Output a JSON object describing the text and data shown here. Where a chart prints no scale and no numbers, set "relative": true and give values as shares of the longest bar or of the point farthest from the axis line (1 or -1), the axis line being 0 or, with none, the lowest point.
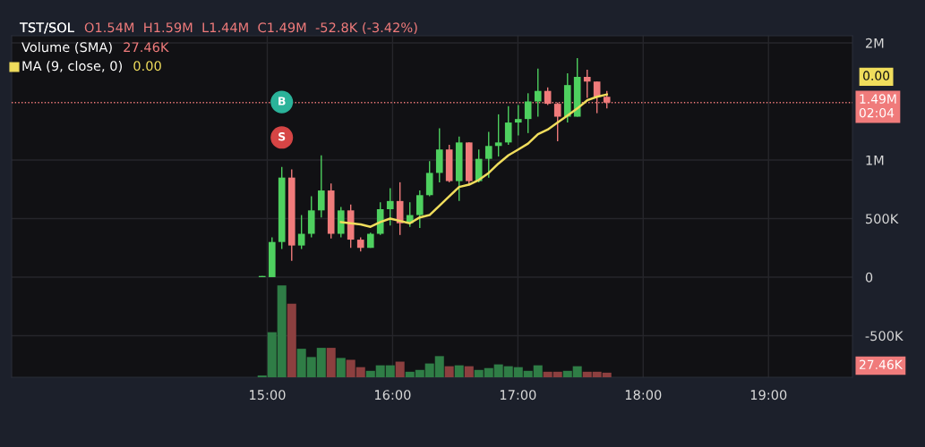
{
  "chart_data": [
    {
      "type": "candlestick",
      "title": "TST/SOL",
      "subtitle": "O1.54M  H1.59M  L1.44M  C1.49M  -52.8K (-3.42%)",
      "x": [
        14.959,
        15.038,
        15.116,
        15.195,
        15.273,
        15.352,
        15.431,
        15.509,
        15.588,
        15.666,
        15.745,
        15.824,
        15.902,
        15.981,
        16.059,
        16.138,
        16.217,
        16.295,
        16.374,
        16.452,
        16.531,
        16.61,
        16.688,
        16.767,
        16.845,
        16.924,
        17.003,
        17.081,
        17.16,
        17.238,
        17.317,
        17.396,
        17.474,
        17.553,
        17.631,
        17.71
      ],
      "series": [
        {
          "type": "candlestick",
          "ohlc": [
            [
              0,
              10000,
              0,
              10000
            ],
            [
              0,
              340000,
              0,
              300000
            ],
            [
              300000,
              940000,
              240000,
              850000
            ],
            [
              850000,
              920000,
              140000,
              270000
            ],
            [
              270000,
              530000,
              240000,
              370000
            ],
            [
              370000,
              690000,
              340000,
              570000
            ],
            [
              570000,
              1040000,
              510000,
              740000
            ],
            [
              740000,
              800000,
              330000,
              370000
            ],
            [
              370000,
              600000,
              340000,
              570000
            ],
            [
              570000,
              620000,
              250000,
              320000
            ],
            [
              320000,
              340000,
              220000,
              250000
            ],
            [
              250000,
              380000,
              250000,
              370000
            ],
            [
              370000,
              640000,
              360000,
              580000
            ],
            [
              580000,
              760000,
              440000,
              650000
            ],
            [
              650000,
              810000,
              360000,
              460000
            ],
            [
              460000,
              640000,
              430000,
              530000
            ],
            [
              530000,
              740000,
              420000,
              700000
            ],
            [
              700000,
              990000,
              690000,
              890000
            ],
            [
              890000,
              1270000,
              810000,
              1090000
            ],
            [
              1090000,
              1130000,
              810000,
              820000
            ],
            [
              820000,
              1200000,
              650000,
              1150000
            ],
            [
              1150000,
              1150000,
              790000,
              820000
            ],
            [
              820000,
              1090000,
              810000,
              1010000
            ],
            [
              1010000,
              1240000,
              850000,
              1120000
            ],
            [
              1120000,
              1390000,
              1030000,
              1150000
            ],
            [
              1150000,
              1460000,
              1130000,
              1320000
            ],
            [
              1320000,
              1470000,
              1210000,
              1350000
            ],
            [
              1350000,
              1570000,
              1230000,
              1500000
            ],
            [
              1500000,
              1780000,
              1370000,
              1590000
            ],
            [
              1590000,
              1620000,
              1470000,
              1480000
            ],
            [
              1480000,
              1490000,
              1160000,
              1370000
            ],
            [
              1370000,
              1740000,
              1320000,
              1640000
            ],
            [
              1370000,
              1870000,
              1370000,
              1710000
            ],
            [
              1710000,
              1770000,
              1530000,
              1670000
            ],
            [
              1670000,
              1670000,
              1400000,
              1540000
            ],
            [
              1540000,
              1590000,
              1440000,
              1490000
            ]
          ],
          "colors": [
            "#4ed05f",
            "#4ed05f",
            "#4ed05f",
            "#f07b7b",
            "#4ed05f",
            "#4ed05f",
            "#4ed05f",
            "#f07b7b",
            "#4ed05f",
            "#f07b7b",
            "#f07b7b",
            "#4ed05f",
            "#4ed05f",
            "#4ed05f",
            "#f07b7b",
            "#4ed05f",
            "#4ed05f",
            "#4ed05f",
            "#4ed05f",
            "#f07b7b",
            "#4ed05f",
            "#f07b7b",
            "#4ed05f",
            "#4ed05f",
            "#4ed05f",
            "#4ed05f",
            "#4ed05f",
            "#4ed05f",
            "#4ed05f",
            "#f07b7b",
            "#f07b7b",
            "#4ed05f",
            "#4ed05f",
            "#f07b7b",
            "#f07b7b",
            "#f07b7b"
          ]
        },
        {
          "type": "line",
          "name": "MA (9, close, 0)",
          "color": "#f0dd5c",
          "values": [
            null,
            null,
            null,
            null,
            null,
            null,
            null,
            null,
            470000,
            460000,
            450000,
            430000,
            470000,
            500000,
            480000,
            460000,
            510000,
            530000,
            610000,
            690000,
            770000,
            790000,
            830000,
            890000,
            970000,
            1040000,
            1090000,
            1140000,
            1220000,
            1260000,
            1320000,
            1380000,
            1440000,
            1510000,
            1540000,
            1560000
          ]
        }
      ],
      "xlim": [
        12.96,
        19.67
      ],
      "xticks": [
        {
          "value": 15,
          "label": "15:00"
        },
        {
          "value": 16,
          "label": "16:00"
        },
        {
          "value": 17,
          "label": "17:00"
        },
        {
          "value": 18,
          "label": "18:00"
        },
        {
          "value": 19,
          "label": "19:00"
        }
      ],
      "ylim": [
        -855000,
        2061000
      ],
      "yticks": [
        {
          "value": -500000,
          "label": "-500K"
        },
        {
          "value": 0,
          "label": "0"
        },
        {
          "value": 500000,
          "label": "500K"
        },
        {
          "value": 1000000,
          "label": "1M"
        },
        {
          "value": 2000000,
          "label": "2M"
        }
      ],
      "grid": true,
      "legend": "top left",
      "line_style": "solid",
      "ref_lines": [
        {
          "axis": "y",
          "value": 1490000,
          "label": "1.49M\n02:04",
          "color": "#f07b7b",
          "line_style": "dotted"
        }
      ],
      "annotations": [
        "0.00",
        "0.00",
        {
          "text": "B",
          "x": 15.116
        },
        {
          "text": "S",
          "x": 15.116
        }
      ]
    },
    {
      "type": "bar",
      "relative": true,
      "x": [
        14.959,
        15.038,
        15.116,
        15.195,
        15.273,
        15.352,
        15.431,
        15.509,
        15.588,
        15.666,
        15.745,
        15.824,
        15.902,
        15.981,
        16.059,
        16.138,
        16.217,
        16.295,
        16.374,
        16.452,
        16.531,
        16.61,
        16.688,
        16.767,
        16.845,
        16.924,
        17.003,
        17.081,
        17.16,
        17.238,
        17.317,
        17.396,
        17.474,
        17.553,
        17.631,
        17.71
      ],
      "series": [
        {
          "name": "Volume (SMA)",
          "color": "#f07b7b",
          "values": [
            0.02,
            0.49,
            1.0,
            0.8,
            0.31,
            0.22,
            0.32,
            0.32,
            0.21,
            0.19,
            0.11,
            0.07,
            0.13,
            0.13,
            0.17,
            0.06,
            0.08,
            0.15,
            0.23,
            0.12,
            0.13,
            0.12,
            0.08,
            0.1,
            0.14,
            0.12,
            0.11,
            0.07,
            0.13,
            0.06,
            0.06,
            0.07,
            0.12,
            0.06,
            0.06,
            0.05
          ],
          "colors": [
            "#2f7d46",
            "#2f7d46",
            "#2f7d46",
            "#8c3f3f",
            "#2f7d46",
            "#2f7d46",
            "#2f7d46",
            "#8c3f3f",
            "#2f7d46",
            "#8c3f3f",
            "#8c3f3f",
            "#2f7d46",
            "#2f7d46",
            "#2f7d46",
            "#8c3f3f",
            "#2f7d46",
            "#2f7d46",
            "#2f7d46",
            "#2f7d46",
            "#8c3f3f",
            "#2f7d46",
            "#8c3f3f",
            "#2f7d46",
            "#2f7d46",
            "#2f7d46",
            "#2f7d46",
            "#2f7d46",
            "#2f7d46",
            "#2f7d46",
            "#8c3f3f",
            "#8c3f3f",
            "#2f7d46",
            "#2f7d46",
            "#8c3f3f",
            "#8c3f3f",
            "#8c3f3f"
          ]
        }
      ],
      "xlim": [
        12.96,
        19.67
      ],
      "legend": "top left",
      "annotations": [
        "27.46K",
        "27.46K"
      ]
    }
  ]
}
